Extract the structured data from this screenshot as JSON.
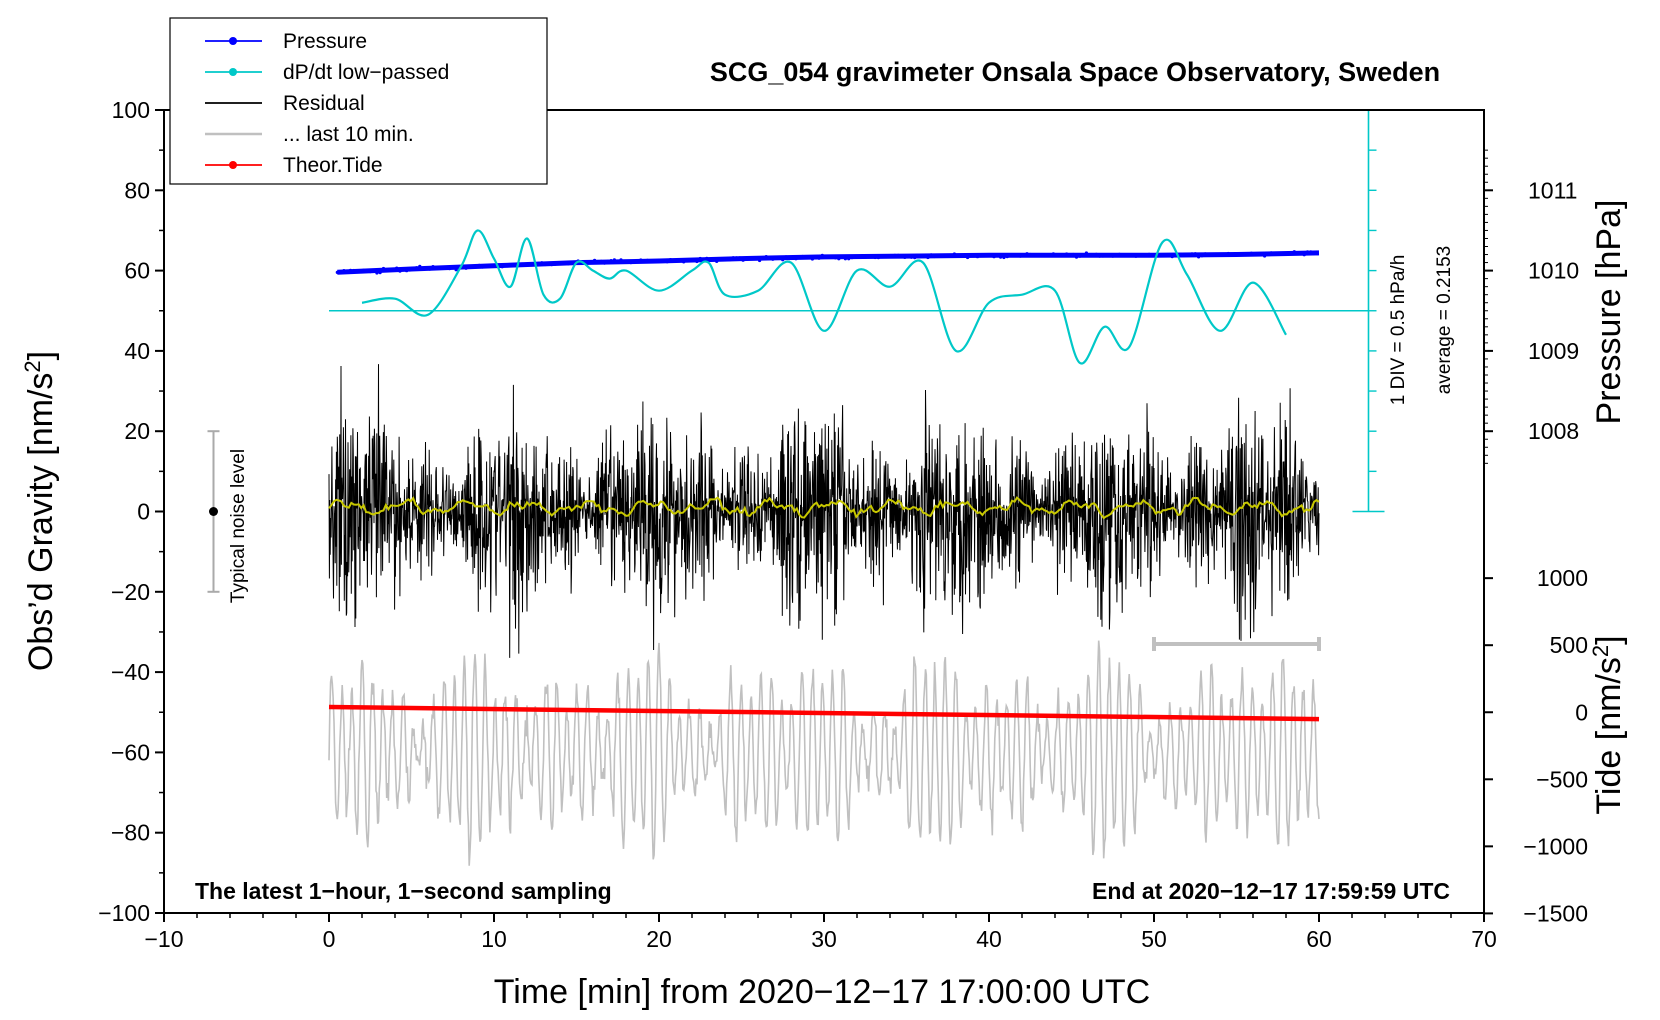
{
  "chart_data": {
    "type": "line",
    "title": "SCG_054 gravimeter Onsala Space Observatory, Sweden",
    "xlabel": "Time [min] from 2020−12−17 17:00:00 UTC",
    "ylabel_left": "Obs’d Gravity [nm/s",
    "ylabel_left_sup": "2",
    "ylabel_left_end": "]",
    "ylabel_right_pressure": "Pressure [hPa]",
    "ylabel_right_tide": "Tide [nm/s",
    "ylabel_right_tide_sup": "2",
    "ylabel_right_tide_end": "]",
    "xlim": [
      -10,
      70
    ],
    "ylim": [
      -100,
      100
    ],
    "x_ticks": [
      "−10",
      "0",
      "10",
      "20",
      "30",
      "40",
      "50",
      "60",
      "70"
    ],
    "x_tick_values": [
      -10,
      0,
      10,
      20,
      30,
      40,
      50,
      60,
      70
    ],
    "y_ticks": [
      "100",
      "80",
      "60",
      "40",
      "20",
      "0",
      "−20",
      "−40",
      "−60",
      "−80",
      "−100"
    ],
    "y_tick_values": [
      100,
      80,
      60,
      40,
      20,
      0,
      -20,
      -40,
      -60,
      -80,
      -100
    ],
    "pressure_ticks": [
      "1011",
      "1010",
      "1009",
      "1008"
    ],
    "pressure_tick_values": [
      1011,
      1010,
      1009,
      1008
    ],
    "pressure_axis_map": {
      "hPa": [
        1010,
        1008
      ],
      "gravity_units": [
        60,
        20
      ]
    },
    "tide_ticks": [
      "1000",
      "500",
      "0",
      "−500",
      "−1000",
      "−1500"
    ],
    "tide_tick_values": [
      1000,
      500,
      0,
      -500,
      -1000,
      -1500
    ],
    "tide_axis_map": {
      "nm_s2": [
        0,
        500
      ],
      "gravity_units": [
        -50,
        -33.3
      ]
    },
    "legend": [
      {
        "label": "Pressure",
        "color": "#0000ff",
        "marker": true
      },
      {
        "label": "dP/dt low−passed",
        "color": "#00c8c8",
        "marker": true
      },
      {
        "label": "Residual",
        "color": "#000000",
        "marker": false
      },
      {
        "label": "... last 10 min.",
        "color": "#c0c0c0",
        "marker": false
      },
      {
        "label": "Theor.Tide",
        "color": "#ff0000",
        "marker": true
      }
    ],
    "series": [
      {
        "name": "Pressure",
        "color": "#0000ff",
        "unit": "hPa",
        "x": [
          0.5,
          5,
          10,
          15,
          20,
          25,
          30,
          35,
          40,
          45,
          50,
          55,
          60
        ],
        "values": [
          1009.98,
          1010.02,
          1010.06,
          1010.1,
          1010.12,
          1010.15,
          1010.17,
          1010.18,
          1010.19,
          1010.19,
          1010.19,
          1010.2,
          1010.22
        ]
      },
      {
        "name": "dP/dt low-passed",
        "color": "#00c8c8",
        "unit": "gravity axis units",
        "x": [
          2,
          4,
          6,
          8,
          9,
          10,
          11,
          12,
          13,
          14,
          15,
          16,
          17,
          18,
          20,
          22,
          23,
          24,
          26,
          28,
          30,
          32,
          34,
          36,
          38,
          40,
          42,
          44,
          45.5,
          47,
          48.5,
          50.5,
          52,
          54,
          56,
          58
        ],
        "values": [
          52,
          53,
          49,
          61,
          70,
          63,
          56,
          68,
          54,
          53,
          62,
          60,
          58,
          60,
          55,
          60,
          62,
          54,
          55,
          62,
          45,
          60,
          56,
          62,
          40,
          52,
          54,
          55,
          37,
          46,
          41,
          67,
          59,
          45,
          57,
          44
        ]
      },
      {
        "name": "dP/dt average line",
        "color": "#00c8c8",
        "x": [
          0,
          63
        ],
        "values": [
          50,
          50
        ]
      },
      {
        "name": "Residual",
        "color": "#000000",
        "x_range": [
          0,
          60
        ],
        "center": 0,
        "amplitude": 18
      },
      {
        "name": "Residual smoothed",
        "color": "#c8c800",
        "x_range": [
          0,
          60
        ],
        "center": 1,
        "amplitude": 2
      },
      {
        "name": "... last 10 min.",
        "color": "#c0c0c0",
        "x_range": [
          0,
          60
        ],
        "center": -60,
        "amplitude": 15
      },
      {
        "name": "Theor.Tide",
        "color": "#ff0000",
        "x": [
          0,
          60
        ],
        "values": [
          -48.7,
          -51.7
        ]
      }
    ],
    "noise_level": {
      "label": "Typical noise level",
      "x": -7,
      "center": 0,
      "range": [
        -20,
        20
      ]
    },
    "ten_min_bracket": {
      "x_range": [
        50,
        60
      ],
      "y": -33
    },
    "scale_bar": {
      "label_div": "1 DIV = 0.5 hPa/h",
      "label_avg": "average = 0.2153",
      "x": 63,
      "y_range": [
        0,
        100
      ],
      "divisions": 10
    },
    "note_left": "The latest 1−hour, 1−second sampling",
    "note_right": "End at 2020−12−17 17:59:59 UTC"
  }
}
